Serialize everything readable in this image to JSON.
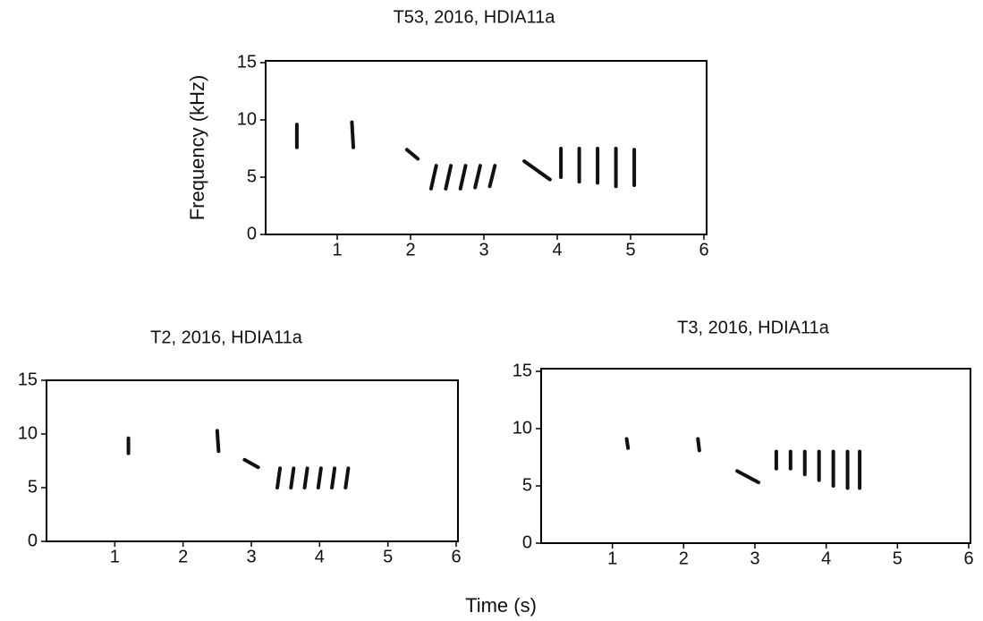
{
  "figure": {
    "x_label": "Time (s)"
  },
  "chart_data": [
    {
      "type": "spectrogram",
      "title": "T53, 2016, HDIA11a",
      "y_label": "Frequency (kHz)",
      "xlim": [
        0,
        6
      ],
      "ylim": [
        0,
        15
      ],
      "xticks": [
        1,
        2,
        3,
        4,
        5,
        6
      ],
      "yticks": [
        0,
        5,
        10,
        15
      ],
      "color": "#111111",
      "notes": [
        {
          "x": [
            0.45,
            0.45
          ],
          "y": [
            9.6,
            7.6
          ]
        },
        {
          "x": [
            1.2,
            1.22
          ],
          "y": [
            9.8,
            7.6
          ]
        },
        {
          "x": [
            1.95,
            2.1
          ],
          "y": [
            7.4,
            6.6
          ]
        },
        {
          "x": [
            2.35,
            2.28
          ],
          "y": [
            6.0,
            4.0
          ]
        },
        {
          "x": [
            2.55,
            2.48
          ],
          "y": [
            6.0,
            4.0
          ]
        },
        {
          "x": [
            2.75,
            2.68
          ],
          "y": [
            6.0,
            4.0
          ]
        },
        {
          "x": [
            2.95,
            2.88
          ],
          "y": [
            6.0,
            4.1
          ]
        },
        {
          "x": [
            3.15,
            3.08
          ],
          "y": [
            6.0,
            4.2
          ]
        },
        {
          "x": [
            3.55,
            3.9
          ],
          "y": [
            6.4,
            4.8
          ]
        },
        {
          "x": [
            4.05,
            4.05
          ],
          "y": [
            7.5,
            5.0
          ]
        },
        {
          "x": [
            4.3,
            4.3
          ],
          "y": [
            7.5,
            4.6
          ]
        },
        {
          "x": [
            4.55,
            4.55
          ],
          "y": [
            7.5,
            4.5
          ]
        },
        {
          "x": [
            4.8,
            4.8
          ],
          "y": [
            7.5,
            4.2
          ]
        },
        {
          "x": [
            5.05,
            5.05
          ],
          "y": [
            7.4,
            4.3
          ]
        }
      ]
    },
    {
      "type": "spectrogram",
      "title": "T2, 2016, HDIA11a",
      "xlim": [
        0,
        6
      ],
      "ylim": [
        0,
        15
      ],
      "xticks": [
        1,
        2,
        3,
        4,
        5,
        6
      ],
      "yticks": [
        0,
        5,
        10,
        15
      ],
      "color": "#111111",
      "notes": [
        {
          "x": [
            1.2,
            1.2
          ],
          "y": [
            9.6,
            8.2
          ]
        },
        {
          "x": [
            2.5,
            2.52
          ],
          "y": [
            10.3,
            8.4
          ]
        },
        {
          "x": [
            2.9,
            3.1
          ],
          "y": [
            7.6,
            6.9
          ]
        },
        {
          "x": [
            3.42,
            3.38
          ],
          "y": [
            6.8,
            5.0
          ]
        },
        {
          "x": [
            3.62,
            3.58
          ],
          "y": [
            6.8,
            5.0
          ]
        },
        {
          "x": [
            3.82,
            3.78
          ],
          "y": [
            6.8,
            5.0
          ]
        },
        {
          "x": [
            4.02,
            3.98
          ],
          "y": [
            6.8,
            5.0
          ]
        },
        {
          "x": [
            4.22,
            4.18
          ],
          "y": [
            6.8,
            5.0
          ]
        },
        {
          "x": [
            4.42,
            4.38
          ],
          "y": [
            6.8,
            5.0
          ]
        }
      ]
    },
    {
      "type": "spectrogram",
      "title": "T3, 2016, HDIA11a",
      "xlim": [
        0,
        6
      ],
      "ylim": [
        0,
        15
      ],
      "xticks": [
        1,
        2,
        3,
        4,
        5,
        6
      ],
      "yticks": [
        0,
        5,
        10,
        15
      ],
      "color": "#111111",
      "notes": [
        {
          "x": [
            1.2,
            1.22
          ],
          "y": [
            9.1,
            8.3
          ]
        },
        {
          "x": [
            2.2,
            2.22
          ],
          "y": [
            9.1,
            8.1
          ]
        },
        {
          "x": [
            2.75,
            3.05
          ],
          "y": [
            6.3,
            5.3
          ]
        },
        {
          "x": [
            3.3,
            3.3
          ],
          "y": [
            8.0,
            6.5
          ]
        },
        {
          "x": [
            3.5,
            3.5
          ],
          "y": [
            8.0,
            6.5
          ]
        },
        {
          "x": [
            3.7,
            3.7
          ],
          "y": [
            8.0,
            6.0
          ]
        },
        {
          "x": [
            3.9,
            3.9
          ],
          "y": [
            8.0,
            5.5
          ]
        },
        {
          "x": [
            4.1,
            4.1
          ],
          "y": [
            8.0,
            5.0
          ]
        },
        {
          "x": [
            4.3,
            4.3
          ],
          "y": [
            8.0,
            4.8
          ]
        },
        {
          "x": [
            4.47,
            4.47
          ],
          "y": [
            8.0,
            4.8
          ]
        }
      ]
    }
  ]
}
